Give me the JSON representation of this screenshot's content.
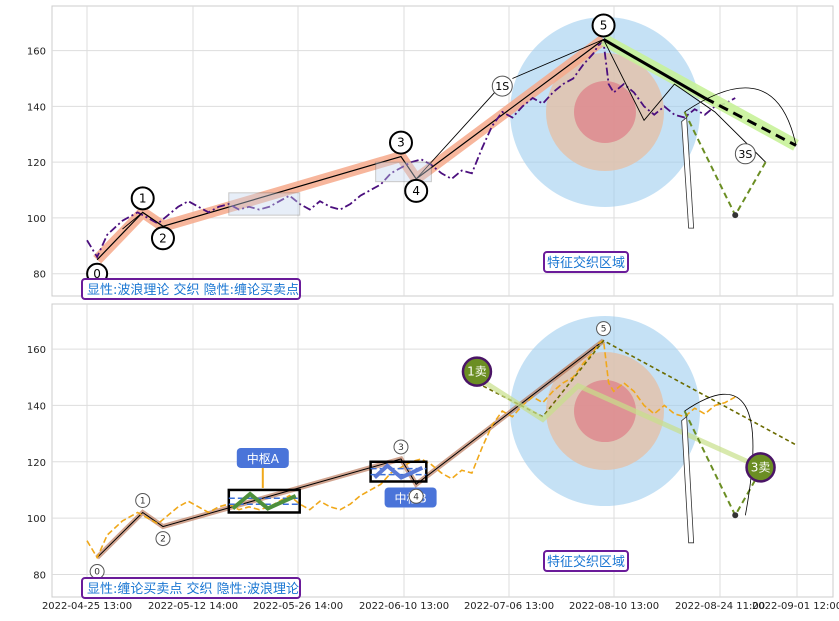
{
  "chart_data": [
    {
      "type": "line",
      "panel": "top",
      "caption": "显性:波浪理论 交织 隐性:缠论买卖点",
      "ylim": [
        72,
        176
      ],
      "yticks": [
        80,
        100,
        120,
        140,
        160
      ],
      "grid": true,
      "series": [],
      "price_line": [
        [
          0,
          92
        ],
        [
          2,
          86
        ],
        [
          4,
          94
        ],
        [
          7,
          99
        ],
        [
          10,
          102
        ],
        [
          12,
          100
        ],
        [
          14,
          98
        ],
        [
          16,
          101
        ],
        [
          18,
          104
        ],
        [
          20,
          106
        ],
        [
          22,
          104
        ],
        [
          24,
          102
        ],
        [
          26,
          104
        ],
        [
          28,
          105
        ],
        [
          30,
          103
        ],
        [
          32,
          104
        ],
        [
          34,
          103
        ],
        [
          36,
          104
        ],
        [
          38,
          106
        ],
        [
          40,
          108
        ],
        [
          42,
          105
        ],
        [
          44,
          103
        ],
        [
          46,
          106
        ],
        [
          48,
          104
        ],
        [
          50,
          103
        ],
        [
          52,
          105
        ],
        [
          54,
          108
        ],
        [
          56,
          110
        ],
        [
          58,
          112
        ],
        [
          60,
          116
        ],
        [
          62,
          118
        ],
        [
          64,
          120
        ],
        [
          66,
          121
        ],
        [
          68,
          119
        ],
        [
          70,
          116
        ],
        [
          72,
          114
        ],
        [
          74,
          117
        ],
        [
          76,
          116
        ],
        [
          78,
          125
        ],
        [
          80,
          133
        ],
        [
          82,
          138
        ],
        [
          84,
          136
        ],
        [
          86,
          140
        ],
        [
          88,
          143
        ],
        [
          90,
          141
        ],
        [
          92,
          145
        ],
        [
          94,
          148
        ],
        [
          96,
          150
        ],
        [
          98,
          155
        ],
        [
          100,
          159
        ],
        [
          101,
          162
        ],
        [
          102,
          163
        ],
        [
          103,
          148
        ],
        [
          104,
          145
        ],
        [
          106,
          148
        ],
        [
          108,
          145
        ],
        [
          110,
          140
        ],
        [
          112,
          137
        ],
        [
          114,
          140
        ],
        [
          116,
          137
        ],
        [
          118,
          136
        ],
        [
          120,
          139
        ],
        [
          122,
          137
        ],
        [
          124,
          140
        ],
        [
          126,
          141
        ],
        [
          128,
          143
        ]
      ],
      "wave_points": [
        {
          "label": "0",
          "x": 2,
          "y": 85
        },
        {
          "label": "1",
          "x": 11,
          "y": 102
        },
        {
          "label": "2",
          "x": 15,
          "y": 97
        },
        {
          "label": "3",
          "x": 62,
          "y": 122
        },
        {
          "label": "4",
          "x": 65,
          "y": 114
        },
        {
          "label": "5",
          "x": 102,
          "y": 164
        }
      ],
      "chan_points": [
        {
          "label": "1S",
          "x": 82,
          "y": 148
        },
        {
          "label": "3S",
          "x": 130,
          "y": 123
        }
      ],
      "annotation": "特征交织区域",
      "future_low": 101
    },
    {
      "type": "line",
      "panel": "bottom",
      "caption": "显性:缠论买卖点 交织 隐性:波浪理论",
      "ylim": [
        72,
        176
      ],
      "yticks": [
        80,
        100,
        120,
        140,
        160
      ],
      "grid": true,
      "x_ticklabels": [
        "2022-04-25 13:00",
        "2022-05-12 14:00",
        "2022-05-26 14:00",
        "2022-06-10 13:00",
        "2022-07-06 13:00",
        "2022-08-10 13:00",
        "2022-08-24 11:00",
        "2022-09-01 12:00"
      ],
      "wave_points": [
        {
          "label": "0",
          "x": 2,
          "y": 86
        },
        {
          "label": "1",
          "x": 11,
          "y": 102
        },
        {
          "label": "2",
          "x": 15,
          "y": 97
        },
        {
          "label": "3",
          "x": 62,
          "y": 121
        },
        {
          "label": "4",
          "x": 65,
          "y": 112
        },
        {
          "label": "5",
          "x": 102,
          "y": 163
        }
      ],
      "chan_points": [
        {
          "label": "1卖",
          "x": 77,
          "y": 152
        },
        {
          "label": "3卖",
          "x": 133,
          "y": 118
        }
      ],
      "zhongshu": [
        {
          "label": "中枢A",
          "x0": 28,
          "x1": 42,
          "y0": 102,
          "y1": 110
        },
        {
          "label": "中枢B",
          "x0": 56,
          "x1": 67,
          "y0": 113,
          "y1": 120
        }
      ],
      "annotation": "特征交织区域",
      "future_low": 101
    }
  ],
  "colors": {
    "wave_band": "#f6a98b",
    "price_top": "#4b0f7e",
    "price_bottom": "#f0a81a",
    "trend_green": "#c8f29a",
    "olive": "#6b8e23",
    "circle_outer": "#9fcdef",
    "circle_mid": "#e3c0a8",
    "circle_inner": "#de7e86",
    "label_purple": "#6a1b9a",
    "label_text": "#1976d2",
    "zs_fill": "#3b6fd6"
  }
}
